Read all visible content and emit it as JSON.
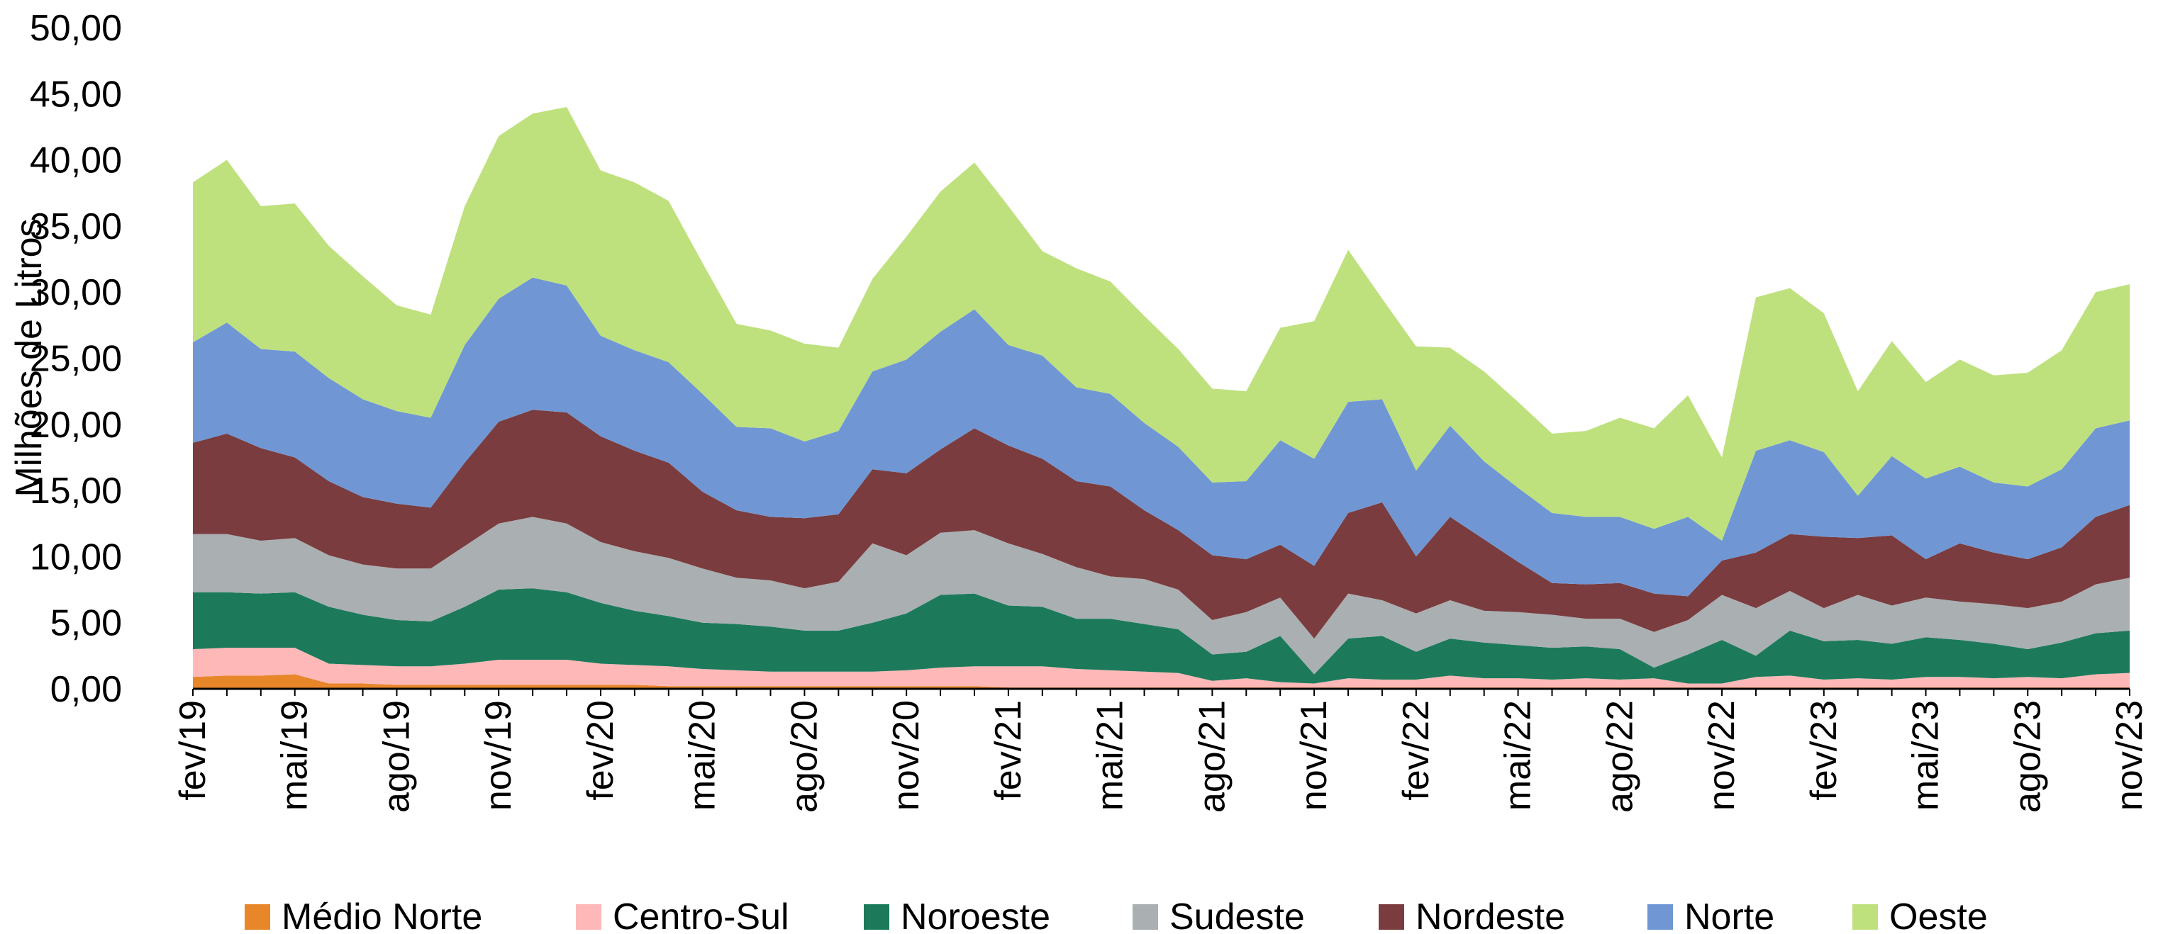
{
  "chart_data": {
    "type": "stacked_area",
    "y_label": "Milhões de Litros",
    "categories": [
      "fev/19",
      null,
      null,
      "mai/19",
      null,
      null,
      "ago/19",
      null,
      null,
      "nov/19",
      null,
      null,
      "fev/20",
      null,
      null,
      "mai/20",
      null,
      null,
      "ago/20",
      null,
      null,
      "nov/20",
      null,
      null,
      "fev/21",
      null,
      null,
      "mai/21",
      null,
      null,
      "ago/21",
      null,
      null,
      "nov/21",
      null,
      null,
      "fev/22",
      null,
      null,
      "mai/22",
      null,
      null,
      "ago/22",
      null,
      null,
      "nov/22",
      null,
      null,
      "fev/23",
      null,
      null,
      "mai/23",
      null,
      null,
      "ago/23",
      null,
      null,
      "nov/23"
    ],
    "ylim": [
      0,
      50
    ],
    "yticks": [
      {
        "value": 0,
        "label": "0,00"
      },
      {
        "value": 5,
        "label": "5,00"
      },
      {
        "value": 10,
        "label": "10,00"
      },
      {
        "value": 15,
        "label": "15,00"
      },
      {
        "value": 20,
        "label": "20,00"
      },
      {
        "value": 25,
        "label": "25,00"
      },
      {
        "value": 30,
        "label": "30,00"
      },
      {
        "value": 35,
        "label": "35,00"
      },
      {
        "value": 40,
        "label": "40,00"
      },
      {
        "value": 45,
        "label": "45,00"
      },
      {
        "value": 50,
        "label": "50,00"
      }
    ],
    "legend": "bottom",
    "series": [
      {
        "name": "Médio Norte",
        "color": "#e8862a",
        "values": [
          0.9,
          1.0,
          1.0,
          1.1,
          0.4,
          0.4,
          0.3,
          0.3,
          0.3,
          0.3,
          0.3,
          0.3,
          0.3,
          0.3,
          0.2,
          0.2,
          0.2,
          0.2,
          0.2,
          0.2,
          0.2,
          0.2,
          0.2,
          0.2,
          0.1,
          0.1,
          0.1,
          0.1,
          0.1,
          0.1,
          0.1,
          0.1,
          0.1,
          0.1,
          0.1,
          0.1,
          0.1,
          0.1,
          0.1,
          0.1,
          0.1,
          0.1,
          0.1,
          0.1,
          0.1,
          0.1,
          0.1,
          0.1,
          0.1,
          0.1,
          0.1,
          0.1,
          0.1,
          0.1,
          0.1,
          0.1,
          0.1,
          0.1
        ]
      },
      {
        "name": "Centro-Sul",
        "color": "#ffb8b8",
        "values": [
          2.1,
          2.1,
          2.1,
          2.0,
          1.5,
          1.4,
          1.4,
          1.4,
          1.6,
          1.9,
          1.9,
          1.9,
          1.6,
          1.5,
          1.5,
          1.3,
          1.2,
          1.1,
          1.1,
          1.1,
          1.1,
          1.2,
          1.4,
          1.5,
          1.6,
          1.6,
          1.4,
          1.3,
          1.2,
          1.1,
          0.5,
          0.7,
          0.4,
          0.3,
          0.7,
          0.6,
          0.6,
          0.9,
          0.7,
          0.7,
          0.6,
          0.7,
          0.6,
          0.7,
          0.3,
          0.3,
          0.8,
          0.9,
          0.6,
          0.7,
          0.6,
          0.8,
          0.8,
          0.7,
          0.8,
          0.7,
          1.0,
          1.1
        ]
      },
      {
        "name": "Noroeste",
        "color": "#1c7a5b",
        "values": [
          4.3,
          4.2,
          4.1,
          4.2,
          4.3,
          3.8,
          3.5,
          3.4,
          4.3,
          5.3,
          5.4,
          5.1,
          4.6,
          4.1,
          3.8,
          3.5,
          3.5,
          3.4,
          3.1,
          3.1,
          3.7,
          4.3,
          5.5,
          5.5,
          4.6,
          4.5,
          3.8,
          3.9,
          3.6,
          3.3,
          2.0,
          2.0,
          3.5,
          0.7,
          3.0,
          3.3,
          2.1,
          2.8,
          2.7,
          2.5,
          2.4,
          2.4,
          2.3,
          0.8,
          2.2,
          3.3,
          1.6,
          3.4,
          2.9,
          2.9,
          2.7,
          3.0,
          2.8,
          2.6,
          2.1,
          2.7,
          3.1,
          3.2
        ]
      },
      {
        "name": "Sudeste",
        "color": "#aaafb2",
        "values": [
          4.4,
          4.4,
          4.0,
          4.1,
          3.9,
          3.8,
          3.9,
          4.0,
          4.6,
          5.0,
          5.4,
          5.2,
          4.6,
          4.5,
          4.4,
          4.1,
          3.5,
          3.5,
          3.2,
          3.7,
          6.0,
          4.4,
          4.7,
          4.8,
          4.7,
          4.0,
          3.9,
          3.2,
          3.4,
          3.0,
          2.6,
          3.0,
          2.9,
          2.7,
          3.4,
          2.7,
          2.9,
          2.9,
          2.4,
          2.5,
          2.5,
          2.1,
          2.3,
          2.7,
          2.6,
          3.4,
          3.6,
          3.0,
          2.5,
          3.4,
          2.9,
          3.0,
          2.9,
          3.0,
          3.1,
          3.1,
          3.7,
          4.0
        ]
      },
      {
        "name": "Nordeste",
        "color": "#7a3c3e",
        "values": [
          6.9,
          7.6,
          7.0,
          6.1,
          5.6,
          5.1,
          4.9,
          4.6,
          6.3,
          7.7,
          8.1,
          8.4,
          8.0,
          7.6,
          7.2,
          5.8,
          5.1,
          4.8,
          5.3,
          5.1,
          5.6,
          6.2,
          6.3,
          7.7,
          7.4,
          7.2,
          6.5,
          6.8,
          5.2,
          4.5,
          4.9,
          4.0,
          4.0,
          5.5,
          6.1,
          7.4,
          4.3,
          6.3,
          5.4,
          3.8,
          2.4,
          2.6,
          2.7,
          2.9,
          1.8,
          2.6,
          4.2,
          4.3,
          5.4,
          4.3,
          5.3,
          2.9,
          4.4,
          3.9,
          3.7,
          4.1,
          5.1,
          5.5
        ]
      },
      {
        "name": "Norte",
        "color": "#7097d4",
        "values": [
          7.6,
          8.4,
          7.5,
          8.0,
          7.8,
          7.4,
          7.0,
          6.8,
          8.9,
          9.3,
          10.0,
          9.6,
          7.6,
          7.6,
          7.6,
          7.4,
          6.3,
          6.7,
          5.8,
          6.3,
          7.4,
          8.6,
          8.9,
          9.0,
          7.6,
          7.8,
          7.1,
          7.0,
          6.6,
          6.3,
          5.5,
          5.9,
          7.9,
          8.1,
          8.4,
          7.8,
          6.5,
          6.9,
          5.9,
          5.6,
          5.3,
          5.1,
          5.0,
          4.9,
          6.0,
          1.5,
          7.7,
          7.1,
          6.4,
          3.2,
          6.0,
          6.1,
          5.8,
          5.3,
          5.5,
          5.9,
          6.7,
          6.4
        ]
      },
      {
        "name": "Oeste",
        "color": "#bee17e",
        "values": [
          12.1,
          12.3,
          10.8,
          11.2,
          10.0,
          9.3,
          8.0,
          7.8,
          10.5,
          12.3,
          12.4,
          13.5,
          12.5,
          12.7,
          12.2,
          9.9,
          7.8,
          7.4,
          7.4,
          6.3,
          7.0,
          9.3,
          10.6,
          11.1,
          10.5,
          7.9,
          9.0,
          8.5,
          8.1,
          7.4,
          7.1,
          6.8,
          8.5,
          10.4,
          11.5,
          7.6,
          9.4,
          5.9,
          6.8,
          6.5,
          6.0,
          6.5,
          7.5,
          7.6,
          9.2,
          6.3,
          11.6,
          11.5,
          10.5,
          7.9,
          8.7,
          7.3,
          8.1,
          8.1,
          8.6,
          9.0,
          10.3,
          10.3
        ]
      }
    ]
  }
}
